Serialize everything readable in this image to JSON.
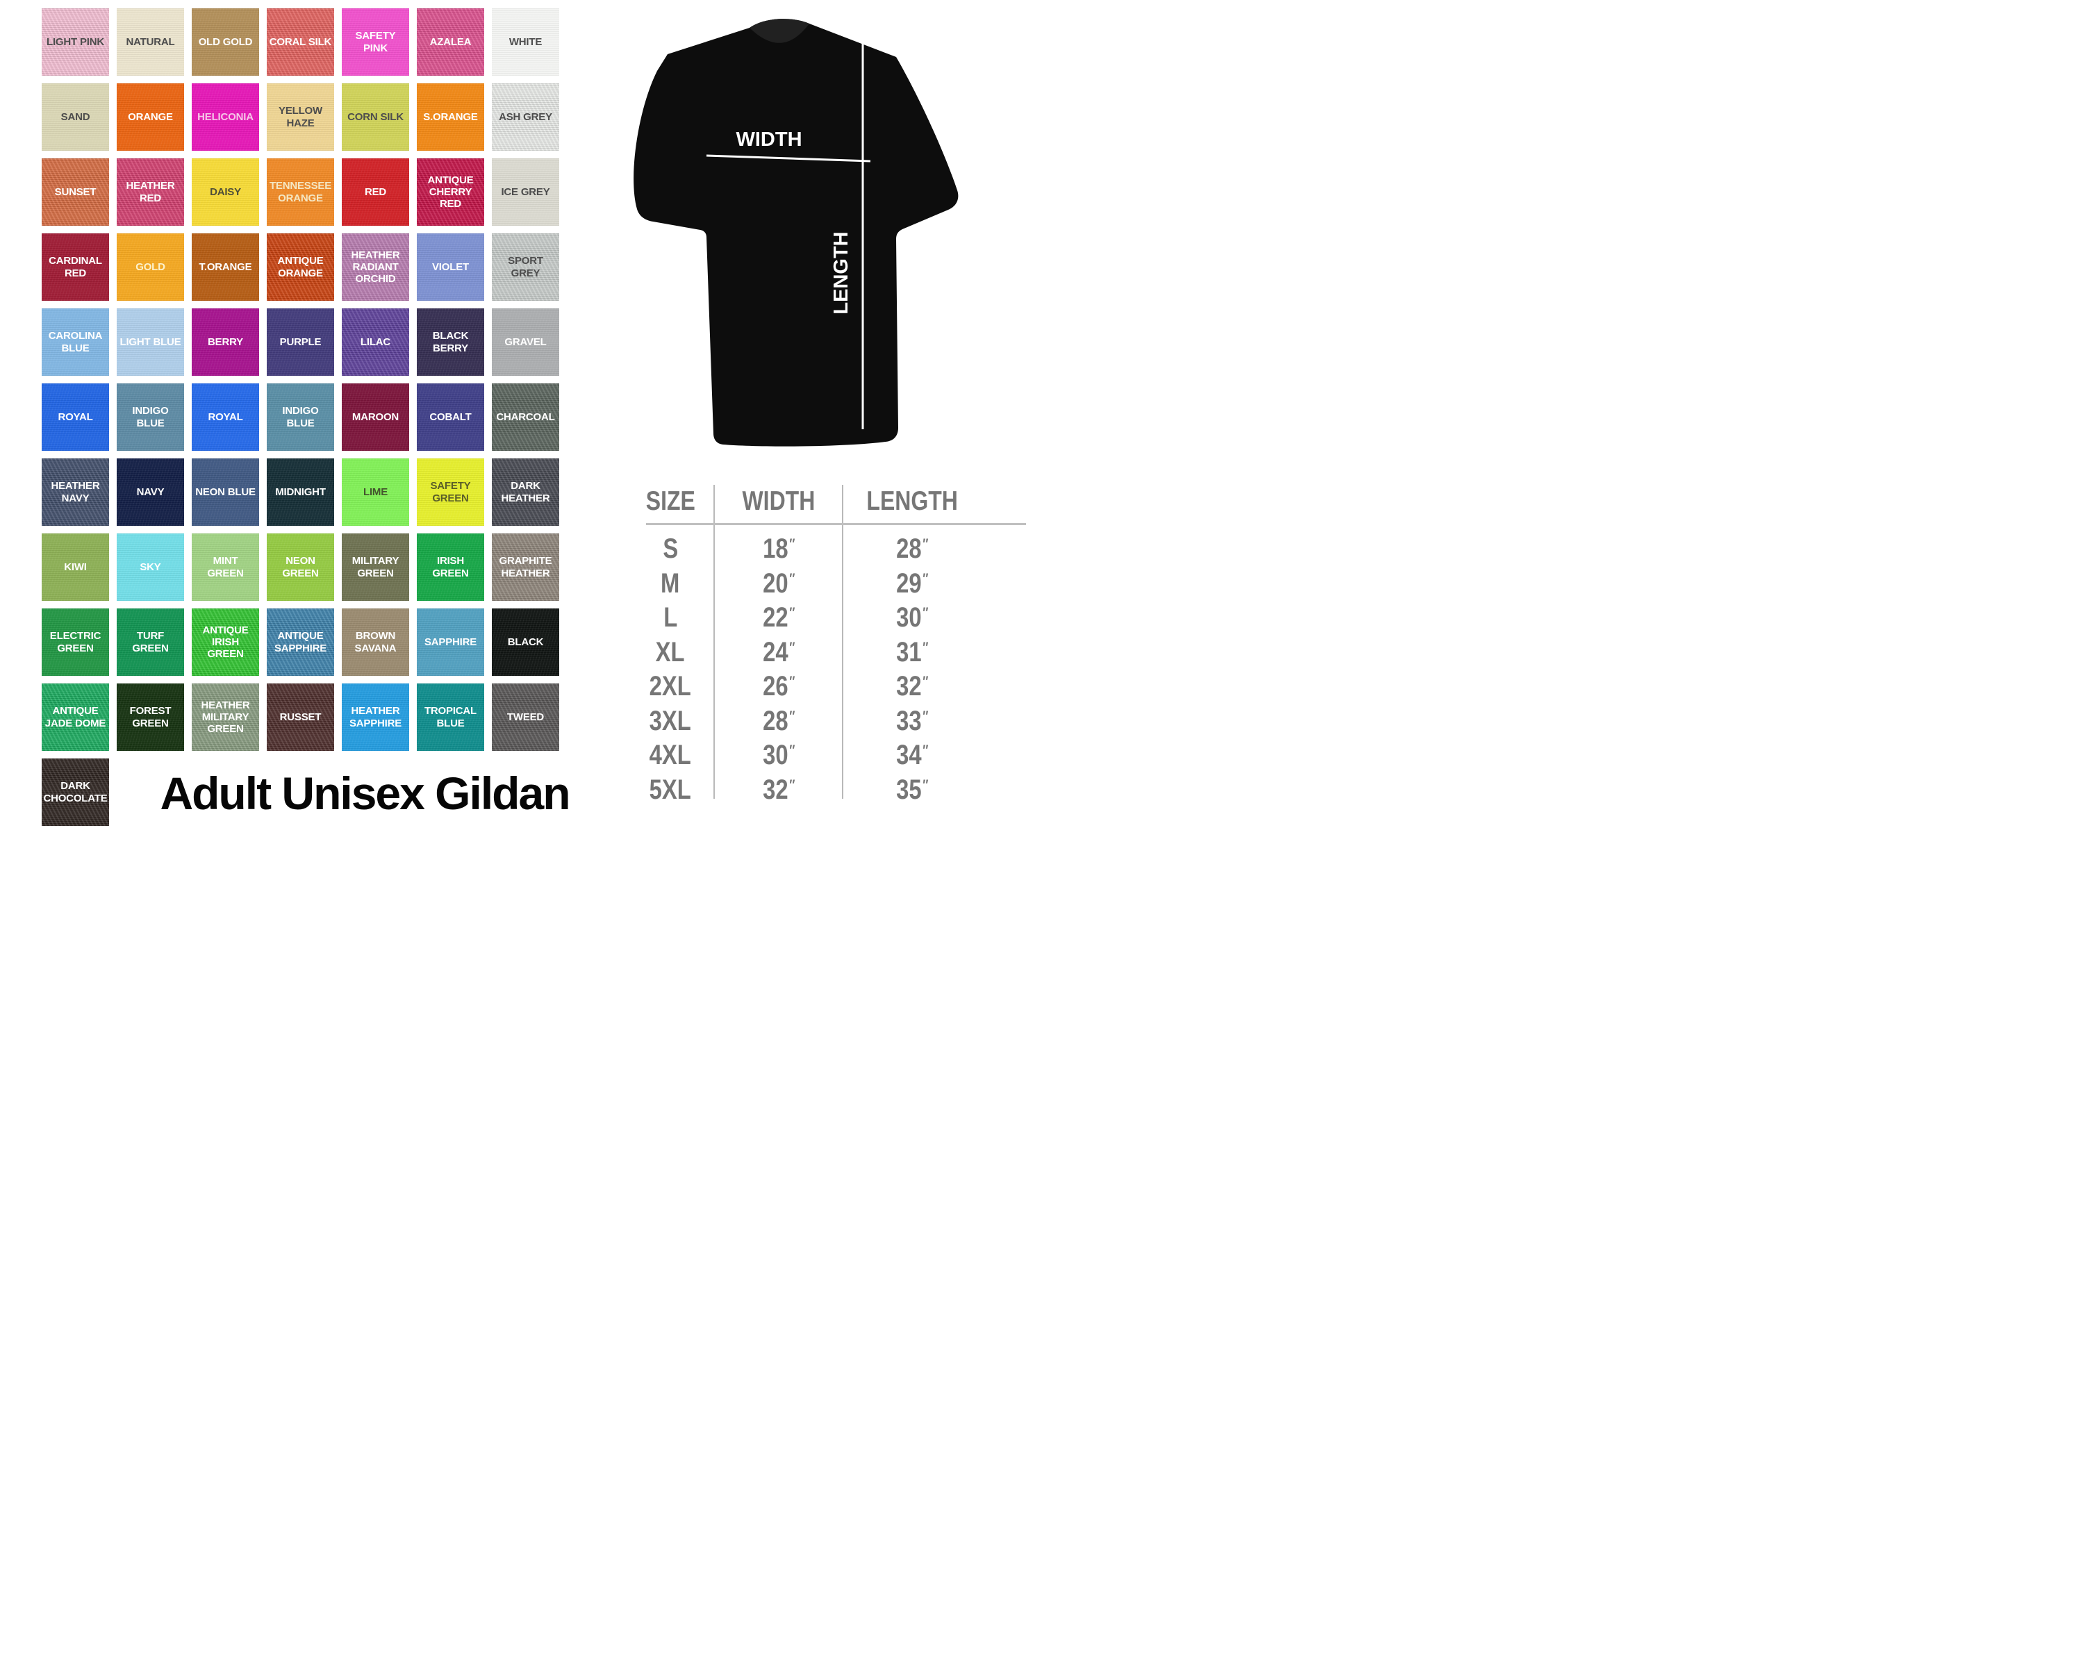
{
  "title": "Adult Unisex Gildan",
  "swatches": [
    {
      "name": "LIGHT PINK",
      "color": "#f3bed2",
      "text_color": "#4d4d4d",
      "heather": true
    },
    {
      "name": "NATURAL",
      "color": "#ebe4cd",
      "text_color": "#4d4d4d",
      "heather": false
    },
    {
      "name": "OLD GOLD",
      "color": "#b18e58",
      "text_color": "#ffffff",
      "heather": false
    },
    {
      "name": "CORAL SILK",
      "color": "#e2615e",
      "text_color": "#ffffff",
      "heather": true
    },
    {
      "name": "SAFETY PINK",
      "color": "#ef4fcb",
      "text_color": "#ffffff",
      "heather": false
    },
    {
      "name": "AZALEA",
      "color": "#dc4f8d",
      "text_color": "#ffffff",
      "heather": true
    },
    {
      "name": "WHITE",
      "color": "#f3f4f2",
      "text_color": "#4d4d4d",
      "heather": false
    },
    {
      "name": "SAND",
      "color": "#dad6b4",
      "text_color": "#4d4d4d",
      "heather": false
    },
    {
      "name": "ORANGE",
      "color": "#e96311",
      "text_color": "#ffffff",
      "heather": false
    },
    {
      "name": "HELICONIA",
      "color": "#e416b5",
      "text_color": "#f6c6e8",
      "heather": false
    },
    {
      "name": "YELLOW HAZE",
      "color": "#eed492",
      "text_color": "#4d4d4d",
      "heather": false
    },
    {
      "name": "CORN SILK",
      "color": "#cfd257",
      "text_color": "#4d4d4d",
      "heather": false
    },
    {
      "name": "S.ORANGE",
      "color": "#f08714",
      "text_color": "#ffffff",
      "heather": false
    },
    {
      "name": "ASH GREY",
      "color": "#e8eae7",
      "text_color": "#4d4d4d",
      "heather": true
    },
    {
      "name": "SUNSET",
      "color": "#d56a40",
      "text_color": "#ffffff",
      "heather": true
    },
    {
      "name": "HEATHER RED",
      "color": "#d23e6e",
      "text_color": "#ffffff",
      "heather": true
    },
    {
      "name": "DAISY",
      "color": "#f6da35",
      "text_color": "#4f4f38",
      "heather": false
    },
    {
      "name": "TENNESSEE ORANGE",
      "color": "#ee8825",
      "text_color": "#f5e7c3",
      "heather": false
    },
    {
      "name": "RED",
      "color": "#d02025",
      "text_color": "#ffffff",
      "heather": false
    },
    {
      "name": "ANTIQUE CHERRY RED",
      "color": "#c31146",
      "text_color": "#ffffff",
      "heather": true
    },
    {
      "name": "ICE GREY",
      "color": "#dbdad0",
      "text_color": "#4d4d4d",
      "heather": false
    },
    {
      "name": "CARDINAL RED",
      "color": "#9e1b34",
      "text_color": "#ffffff",
      "heather": false
    },
    {
      "name": "GOLD",
      "color": "#f3a71f",
      "text_color": "#fdf2cd",
      "heather": false
    },
    {
      "name": "T.ORANGE",
      "color": "#b45c13",
      "text_color": "#ffffff",
      "heather": false
    },
    {
      "name": "ANTIQUE ORANGE",
      "color": "#c9400d",
      "text_color": "#ffffff",
      "heather": true
    },
    {
      "name": "HEATHER RADIANT ORCHID",
      "color": "#b77aaf",
      "text_color": "#ffffff",
      "heather": true
    },
    {
      "name": "VIOLET",
      "color": "#7c90d1",
      "text_color": "#ffffff",
      "heather": false
    },
    {
      "name": "SPORT GREY",
      "color": "#c7ccca",
      "text_color": "#4d4d4d",
      "heather": true
    },
    {
      "name": "CAROLINA BLUE",
      "color": "#80b5e2",
      "text_color": "#ffffff",
      "heather": false
    },
    {
      "name": "LIGHT BLUE",
      "color": "#aecde9",
      "text_color": "#ffffff",
      "heather": false
    },
    {
      "name": "BERRY",
      "color": "#a5118d",
      "text_color": "#ffffff",
      "heather": false
    },
    {
      "name": "PURPLE",
      "color": "#413a7a",
      "text_color": "#ffffff",
      "heather": false
    },
    {
      "name": "LILAC",
      "color": "#5c3f9a",
      "text_color": "#ffffff",
      "heather": true
    },
    {
      "name": "BLACK BERRY",
      "color": "#342d50",
      "text_color": "#ffffff",
      "heather": false
    },
    {
      "name": "GRAVEL",
      "color": "#abadaf",
      "text_color": "#ffffff",
      "heather": false
    },
    {
      "name": "ROYAL",
      "color": "#2164e2",
      "text_color": "#ffffff",
      "heather": false
    },
    {
      "name": "INDIGO BLUE",
      "color": "#5c89a3",
      "text_color": "#ffffff",
      "heather": false
    },
    {
      "name": "ROYAL",
      "color": "#2468e8",
      "text_color": "#ffffff",
      "heather": false
    },
    {
      "name": "INDIGO BLUE",
      "color": "#588da4",
      "text_color": "#ffffff",
      "heather": false
    },
    {
      "name": "MAROON",
      "color": "#7b143a",
      "text_color": "#ffffff",
      "heather": false
    },
    {
      "name": "COBALT",
      "color": "#3e3e87",
      "text_color": "#ffffff",
      "heather": false
    },
    {
      "name": "CHARCOAL",
      "color": "#58635b",
      "text_color": "#ffffff",
      "heather": true
    },
    {
      "name": "HEATHER NAVY",
      "color": "#3f4c69",
      "text_color": "#ffffff",
      "heather": true
    },
    {
      "name": "NAVY",
      "color": "#121e45",
      "text_color": "#ffffff",
      "heather": false
    },
    {
      "name": "NEON BLUE",
      "color": "#3f5882",
      "text_color": "#ffffff",
      "heather": false
    },
    {
      "name": "MIDNIGHT",
      "color": "#142d35",
      "text_color": "#ffffff",
      "heather": false
    },
    {
      "name": "LIME",
      "color": "#80f055",
      "text_color": "#44542e",
      "heather": false
    },
    {
      "name": "SAFETY GREEN",
      "color": "#e5ee2b",
      "text_color": "#5a5e29",
      "heather": false
    },
    {
      "name": "DARK HEATHER",
      "color": "#454750",
      "text_color": "#ffffff",
      "heather": true
    },
    {
      "name": "KIWI",
      "color": "#8caf54",
      "text_color": "#ffffff",
      "heather": false
    },
    {
      "name": "SKY",
      "color": "#71dde7",
      "text_color": "#ffffff",
      "heather": false
    },
    {
      "name": "MINT GREEN",
      "color": "#9fd182",
      "text_color": "#ffffff",
      "heather": false
    },
    {
      "name": "NEON GREEN",
      "color": "#93c941",
      "text_color": "#ffffff",
      "heather": false
    },
    {
      "name": "MILITARY GREEN",
      "color": "#6d7150",
      "text_color": "#ffffff",
      "heather": false
    },
    {
      "name": "IRISH GREEN",
      "color": "#15a646",
      "text_color": "#ffffff",
      "heather": false
    },
    {
      "name": "GRAPHITE HEATHER",
      "color": "#8d8479",
      "text_color": "#ffffff",
      "heather": true
    },
    {
      "name": "ELECTRIC GREEN",
      "color": "#219543",
      "text_color": "#ffffff",
      "heather": false
    },
    {
      "name": "TURF GREEN",
      "color": "#119251",
      "text_color": "#ffffff",
      "heather": false
    },
    {
      "name": "ANTIQUE IRISH GREEN",
      "color": "#2ec32e",
      "text_color": "#ffffff",
      "heather": true
    },
    {
      "name": "ANTIQUE SAPPHIRE",
      "color": "#3c81aa",
      "text_color": "#ffffff",
      "heather": true
    },
    {
      "name": "BROWN SAVANA",
      "color": "#99896e",
      "text_color": "#ffffff",
      "heather": false
    },
    {
      "name": "SAPPHIRE",
      "color": "#509fbf",
      "text_color": "#ffffff",
      "heather": false
    },
    {
      "name": "BLACK",
      "color": "#101412",
      "text_color": "#ffffff",
      "heather": false
    },
    {
      "name": "ANTIQUE JADE DOME",
      "color": "#19aa5e",
      "text_color": "#ffffff",
      "heather": true
    },
    {
      "name": "FOREST GREEN",
      "color": "#163211",
      "text_color": "#ffffff",
      "heather": false
    },
    {
      "name": "HEATHER MILITARY GREEN",
      "color": "#869a7e",
      "text_color": "#ffffff",
      "heather": true
    },
    {
      "name": "RUSSET",
      "color": "#4c2c2a",
      "text_color": "#ffffff",
      "heather": true
    },
    {
      "name": "HEATHER SAPPHIRE",
      "color": "#239bde",
      "text_color": "#ffffff",
      "heather": false
    },
    {
      "name": "TROPICAL BLUE",
      "color": "#0f8c8c",
      "text_color": "#ffffff",
      "heather": false
    },
    {
      "name": "TWEED",
      "color": "#575555",
      "text_color": "#ffffff",
      "heather": true
    },
    {
      "name": "DARK CHOCOLATE",
      "color": "#2d231f",
      "text_color": "#ffffff",
      "heather": true
    }
  ],
  "shirt": {
    "width_label": "WIDTH",
    "length_label": "LENGTH",
    "shirt_color": "#0d0d0d",
    "collar_color": "#212121",
    "line_color": "#ffffff"
  },
  "size_chart": {
    "headers": [
      "SIZE",
      "WIDTH",
      "LENGTH"
    ],
    "inch_mark": "″",
    "text_color": "#767676",
    "rows": [
      {
        "size": "S",
        "width": "18",
        "length": "28"
      },
      {
        "size": "M",
        "width": "20",
        "length": "29"
      },
      {
        "size": "L",
        "width": "22",
        "length": "30"
      },
      {
        "size": "XL",
        "width": "24",
        "length": "31"
      },
      {
        "size": "2XL",
        "width": "26",
        "length": "32"
      },
      {
        "size": "3XL",
        "width": "28",
        "length": "33"
      },
      {
        "size": "4XL",
        "width": "30",
        "length": "34"
      },
      {
        "size": "5XL",
        "width": "32",
        "length": "35"
      }
    ]
  }
}
